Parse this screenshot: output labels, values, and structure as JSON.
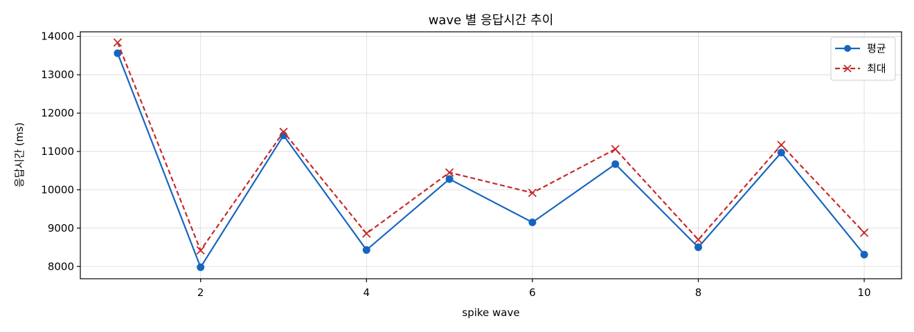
{
  "chart_data": {
    "type": "line",
    "title": "wave 별 응답시간 추이",
    "xlabel": "spike wave",
    "ylabel": "응답시간 (ms)",
    "x": [
      1,
      2,
      3,
      4,
      5,
      6,
      7,
      8,
      9,
      10
    ],
    "x_ticks": [
      2,
      4,
      6,
      8,
      10
    ],
    "y_ticks": [
      8000,
      9000,
      10000,
      11000,
      12000,
      13000,
      14000
    ],
    "xlim": [
      0.55,
      10.45
    ],
    "ylim": [
      7680,
      14120
    ],
    "grid": true,
    "legend_position": "top-right",
    "series": [
      {
        "name": "평균",
        "values": [
          13560,
          7980,
          11420,
          8430,
          10280,
          9150,
          10670,
          8500,
          10970,
          8310
        ],
        "color": "#1565c0",
        "line_style": "solid",
        "marker": "circle"
      },
      {
        "name": "최대",
        "values": [
          13840,
          8420,
          11510,
          8860,
          10450,
          9920,
          11060,
          8700,
          11170,
          8880
        ],
        "color": "#c62828",
        "line_style": "dashed",
        "marker": "x"
      }
    ]
  }
}
